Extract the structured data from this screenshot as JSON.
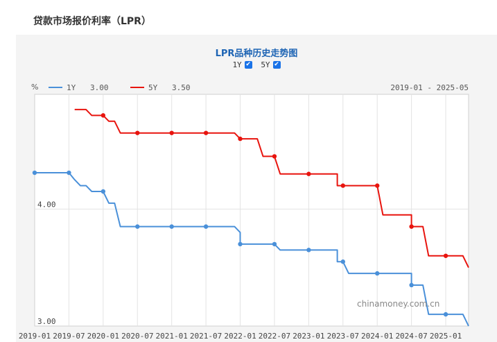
{
  "page": {
    "title": "贷款市场报价利率（LPR）"
  },
  "chart": {
    "title": "LPR品种历史走势图",
    "toggles": [
      {
        "label": "1Y",
        "checked": true,
        "check_mark": "✔"
      },
      {
        "label": "5Y",
        "checked": true,
        "check_mark": "✔"
      }
    ],
    "unit": "%",
    "date_range": "2019-01 - 2025-05",
    "watermark": "chinamoney.com.cn",
    "colors": {
      "1Y": "#4a90d9",
      "5Y": "#e8140e"
    }
  },
  "chart_data": {
    "type": "line",
    "x_tick_labels": [
      "2019-01",
      "2019-07",
      "2020-01",
      "2020-07",
      "2021-01",
      "2021-07",
      "2022-01",
      "2022-07",
      "2023-01",
      "2023-07",
      "2024-01",
      "2024-07",
      "2025-01"
    ],
    "y_tick_labels": [
      "4.00",
      "3.00"
    ],
    "ylim": [
      3.0,
      4.98
    ],
    "xlim": [
      "2019-01",
      "2025-05"
    ],
    "grid": true,
    "legend_position": "top-left",
    "series": [
      {
        "name": "1Y",
        "legend_value": "3.00",
        "points": [
          [
            "2019-01",
            4.31
          ],
          [
            "2019-07",
            4.31
          ],
          [
            "2019-08",
            4.25
          ],
          [
            "2019-09",
            4.2
          ],
          [
            "2019-10",
            4.2
          ],
          [
            "2019-11",
            4.15
          ],
          [
            "2020-01",
            4.15
          ],
          [
            "2020-02",
            4.05
          ],
          [
            "2020-03",
            4.05
          ],
          [
            "2020-04",
            3.85
          ],
          [
            "2020-07",
            3.85
          ],
          [
            "2021-01",
            3.85
          ],
          [
            "2021-07",
            3.85
          ],
          [
            "2021-12",
            3.85
          ],
          [
            "2022-01",
            3.8
          ],
          [
            "2022-01",
            3.7
          ],
          [
            "2022-07",
            3.7
          ],
          [
            "2022-08",
            3.65
          ],
          [
            "2023-01",
            3.65
          ],
          [
            "2023-06",
            3.65
          ],
          [
            "2023-06",
            3.55
          ],
          [
            "2023-07",
            3.55
          ],
          [
            "2023-08",
            3.45
          ],
          [
            "2024-01",
            3.45
          ],
          [
            "2024-07",
            3.45
          ],
          [
            "2024-07",
            3.35
          ],
          [
            "2024-08",
            3.35
          ],
          [
            "2024-09",
            3.35
          ],
          [
            "2024-10",
            3.1
          ],
          [
            "2025-01",
            3.1
          ],
          [
            "2025-04",
            3.1
          ],
          [
            "2025-05",
            3.0
          ]
        ],
        "markers": [
          [
            "2019-01",
            4.31
          ],
          [
            "2019-07",
            4.31
          ],
          [
            "2020-01",
            4.15
          ],
          [
            "2020-07",
            3.85
          ],
          [
            "2021-01",
            3.85
          ],
          [
            "2021-07",
            3.85
          ],
          [
            "2022-01",
            3.7
          ],
          [
            "2022-07",
            3.7
          ],
          [
            "2023-01",
            3.65
          ],
          [
            "2023-07",
            3.55
          ],
          [
            "2024-01",
            3.45
          ],
          [
            "2024-07",
            3.35
          ],
          [
            "2025-01",
            3.1
          ]
        ]
      },
      {
        "name": "5Y",
        "legend_value": "3.50",
        "points": [
          [
            "2019-08",
            4.85
          ],
          [
            "2019-10",
            4.85
          ],
          [
            "2019-11",
            4.8
          ],
          [
            "2020-01",
            4.8
          ],
          [
            "2020-02",
            4.75
          ],
          [
            "2020-03",
            4.75
          ],
          [
            "2020-04",
            4.65
          ],
          [
            "2020-07",
            4.65
          ],
          [
            "2021-01",
            4.65
          ],
          [
            "2021-07",
            4.65
          ],
          [
            "2021-12",
            4.65
          ],
          [
            "2022-01",
            4.6
          ],
          [
            "2022-04",
            4.6
          ],
          [
            "2022-05",
            4.45
          ],
          [
            "2022-07",
            4.45
          ],
          [
            "2022-08",
            4.3
          ],
          [
            "2023-01",
            4.3
          ],
          [
            "2023-06",
            4.3
          ],
          [
            "2023-06",
            4.2
          ],
          [
            "2024-01",
            4.2
          ],
          [
            "2024-02",
            3.95
          ],
          [
            "2024-07",
            3.95
          ],
          [
            "2024-07",
            3.85
          ],
          [
            "2024-09",
            3.85
          ],
          [
            "2024-10",
            3.6
          ],
          [
            "2025-01",
            3.6
          ],
          [
            "2025-04",
            3.6
          ],
          [
            "2025-05",
            3.5
          ]
        ],
        "markers": [
          [
            "2020-01",
            4.8
          ],
          [
            "2020-07",
            4.65
          ],
          [
            "2021-01",
            4.65
          ],
          [
            "2021-07",
            4.65
          ],
          [
            "2022-01",
            4.6
          ],
          [
            "2022-07",
            4.45
          ],
          [
            "2023-01",
            4.3
          ],
          [
            "2023-07",
            4.2
          ],
          [
            "2024-01",
            4.2
          ],
          [
            "2024-07",
            3.85
          ],
          [
            "2025-01",
            3.6
          ]
        ]
      }
    ]
  }
}
